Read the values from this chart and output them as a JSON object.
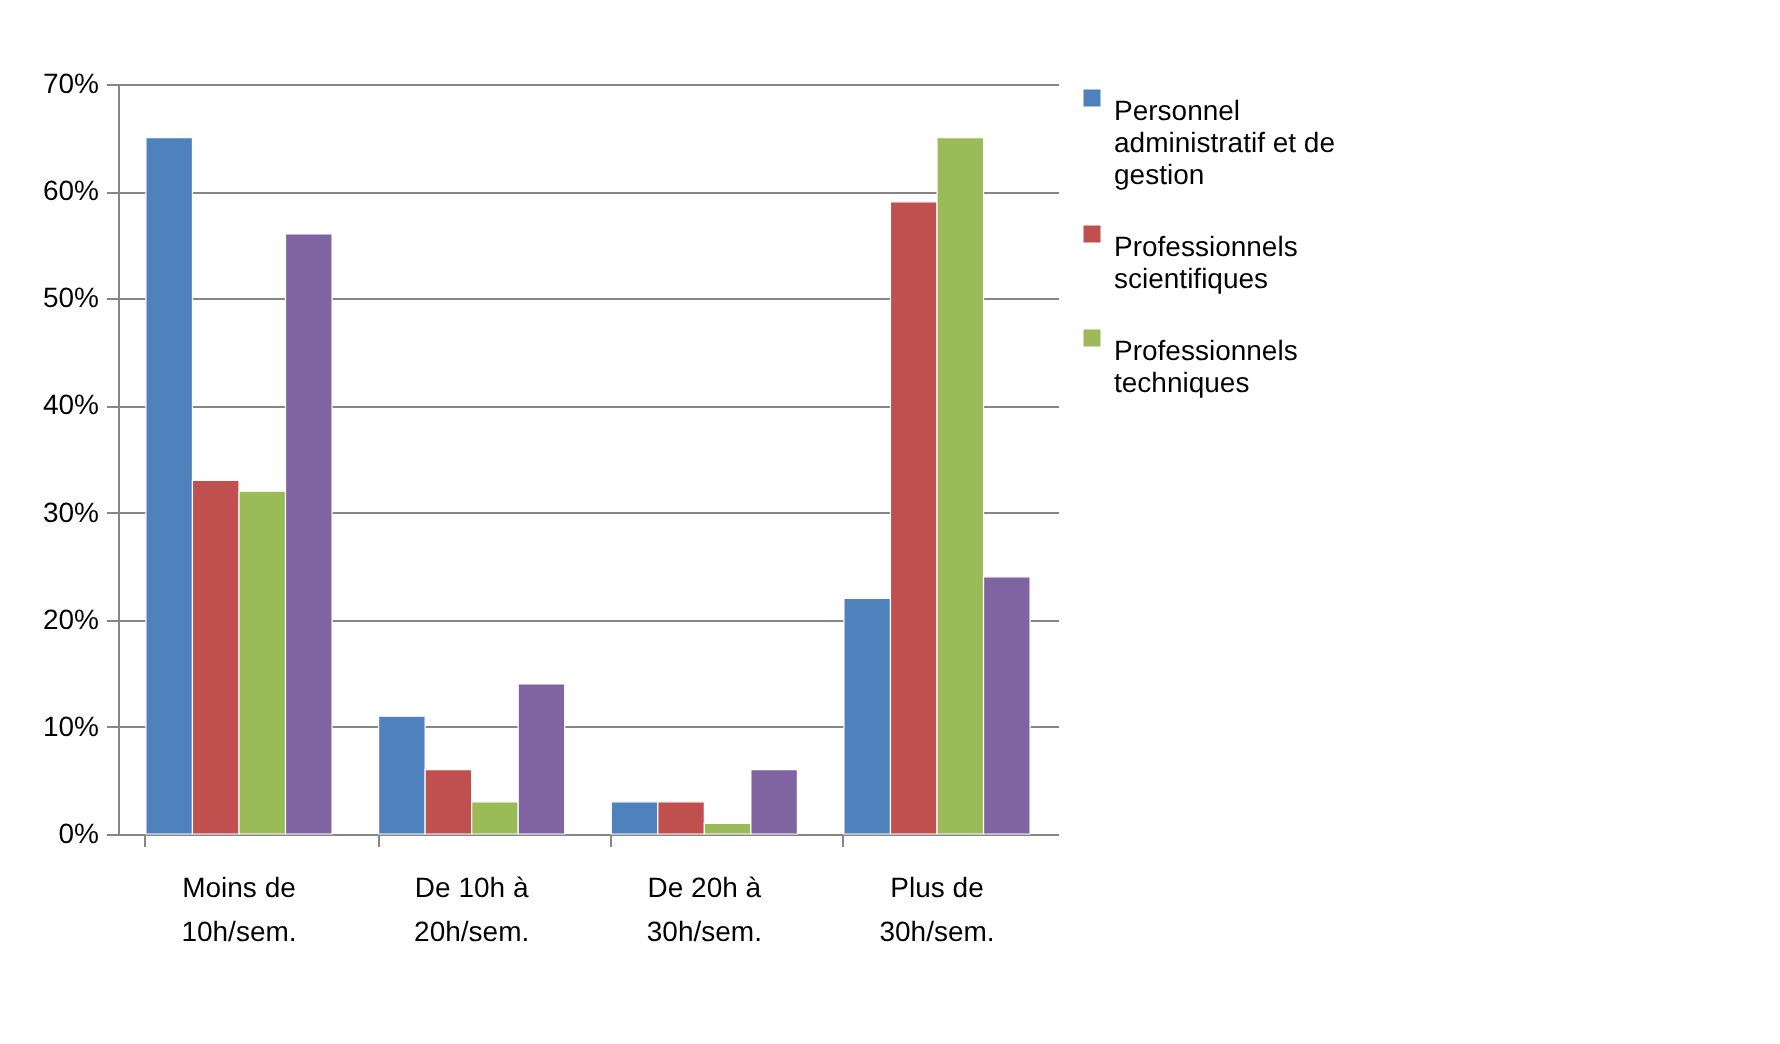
{
  "chart_data": {
    "type": "bar",
    "categories": [
      "Moins de 10h/sem.",
      "De 10h à 20h/sem.",
      "De 20h à 30h/sem.",
      "Plus de 30h/sem."
    ],
    "series": [
      {
        "name": "Personnel administratif et de gestion",
        "color": "#4f81bd",
        "values": [
          65,
          11,
          3,
          22
        ]
      },
      {
        "name": "Professionnels scientifiques",
        "color": "#c0504d",
        "values": [
          33,
          6,
          3,
          59
        ]
      },
      {
        "name": "Professionnels techniques",
        "color": "#9bbb59",
        "values": [
          32,
          3,
          1,
          65
        ]
      },
      {
        "color": "#8064a2",
        "values": [
          56,
          14,
          6,
          24
        ]
      }
    ],
    "ylim": [
      0,
      70
    ],
    "yticks": [
      {
        "value": 0,
        "label": "0%"
      },
      {
        "value": 10,
        "label": "10%"
      },
      {
        "value": 20,
        "label": "20%"
      },
      {
        "value": 30,
        "label": "30%"
      },
      {
        "value": 40,
        "label": "40%"
      },
      {
        "value": 50,
        "label": "50%"
      },
      {
        "value": 60,
        "label": "60%"
      },
      {
        "value": 70,
        "label": "70%"
      }
    ],
    "grid": "y",
    "legend": "right"
  }
}
